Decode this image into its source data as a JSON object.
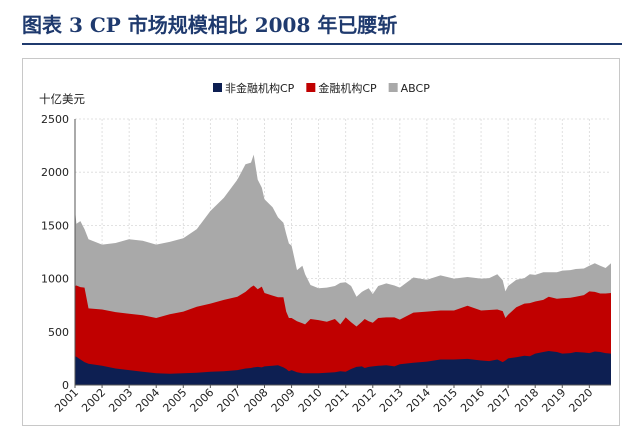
{
  "figure": {
    "title": "图表 3   CP 市场规模相比 2008 年已腰斩"
  },
  "colors": {
    "non_financial": "#0d1f52",
    "financial": "#c00000",
    "abcp": "#a9a9a9",
    "title": "#1f3a6e",
    "grid": "#d9d9d9"
  },
  "chart_data": {
    "type": "area",
    "stacked": true,
    "title": "CP 市场规模相比 2008 年已腰斩",
    "ylabel": "十亿美元",
    "xlabel": "",
    "ylim": [
      0,
      2500
    ],
    "yticks": [
      0,
      500,
      1000,
      1500,
      2000,
      2500
    ],
    "xlim": [
      2001,
      2020.8
    ],
    "xticks": [
      "2001",
      "2002",
      "2003",
      "2004",
      "2005",
      "2006",
      "2007",
      "2008",
      "2009",
      "2010",
      "2011",
      "2012",
      "2013",
      "2014",
      "2015",
      "2016",
      "2017",
      "2018",
      "2019",
      "2020"
    ],
    "grid": true,
    "legend_position": "top",
    "x": [
      2001.0,
      2001.05,
      2001.2,
      2001.35,
      2001.5,
      2002.0,
      2002.5,
      2003.0,
      2003.5,
      2004.0,
      2004.5,
      2005.0,
      2005.5,
      2006.0,
      2006.5,
      2007.0,
      2007.3,
      2007.5,
      2007.6,
      2007.75,
      2007.9,
      2008.0,
      2008.3,
      2008.5,
      2008.7,
      2008.8,
      2008.9,
      2009.0,
      2009.2,
      2009.4,
      2009.5,
      2009.7,
      2010.0,
      2010.3,
      2010.6,
      2010.8,
      2011.0,
      2011.2,
      2011.4,
      2011.6,
      2011.7,
      2011.85,
      2012.0,
      2012.2,
      2012.5,
      2012.8,
      2013.0,
      2013.5,
      2014.0,
      2014.5,
      2015.0,
      2015.5,
      2016.0,
      2016.3,
      2016.6,
      2016.8,
      2016.9,
      2017.0,
      2017.3,
      2017.6,
      2017.8,
      2018.0,
      2018.3,
      2018.5,
      2018.8,
      2019.0,
      2019.3,
      2019.5,
      2019.8,
      2020.0,
      2020.2,
      2020.4,
      2020.6,
      2020.8
    ],
    "series": [
      {
        "name": "非金融机构CP",
        "values": [
          270,
          265,
          240,
          215,
          200,
          180,
          155,
          140,
          125,
          110,
          105,
          110,
          115,
          125,
          130,
          140,
          155,
          160,
          165,
          170,
          165,
          175,
          180,
          185,
          165,
          150,
          130,
          140,
          120,
          110,
          110,
          110,
          110,
          115,
          120,
          130,
          125,
          150,
          170,
          175,
          160,
          170,
          175,
          180,
          185,
          175,
          195,
          210,
          220,
          240,
          240,
          245,
          230,
          225,
          240,
          215,
          230,
          250,
          260,
          275,
          270,
          295,
          310,
          320,
          310,
          295,
          300,
          310,
          305,
          300,
          315,
          310,
          300,
          295
        ]
      },
      {
        "name": "金融机构CP",
        "values": [
          660,
          670,
          680,
          700,
          520,
          530,
          530,
          530,
          530,
          520,
          560,
          580,
          620,
          640,
          670,
          690,
          720,
          760,
          770,
          730,
          760,
          690,
          660,
          640,
          660,
          540,
          500,
          490,
          480,
          470,
          460,
          510,
          500,
          480,
          500,
          440,
          510,
          440,
          380,
          420,
          460,
          430,
          410,
          450,
          450,
          460,
          420,
          470,
          470,
          460,
          460,
          500,
          470,
          480,
          470,
          480,
          400,
          410,
          470,
          490,
          500,
          490,
          490,
          510,
          500,
          520,
          520,
          520,
          540,
          580,
          560,
          550,
          560,
          570
        ]
      },
      {
        "name": "ABCP",
        "values": [
          720,
          580,
          620,
          550,
          650,
          610,
          650,
          700,
          700,
          690,
          680,
          690,
          730,
          870,
          960,
          1100,
          1200,
          1170,
          1230,
          1030,
          930,
          880,
          830,
          750,
          700,
          730,
          700,
          680,
          480,
          540,
          470,
          320,
          300,
          320,
          310,
          390,
          330,
          340,
          280,
          280,
          270,
          310,
          270,
          300,
          320,
          300,
          300,
          330,
          300,
          330,
          300,
          270,
          300,
          300,
          330,
          290,
          250,
          270,
          260,
          240,
          270,
          250,
          260,
          230,
          250,
          260,
          260,
          260,
          250,
          240,
          270,
          260,
          240,
          280
        ]
      }
    ]
  }
}
